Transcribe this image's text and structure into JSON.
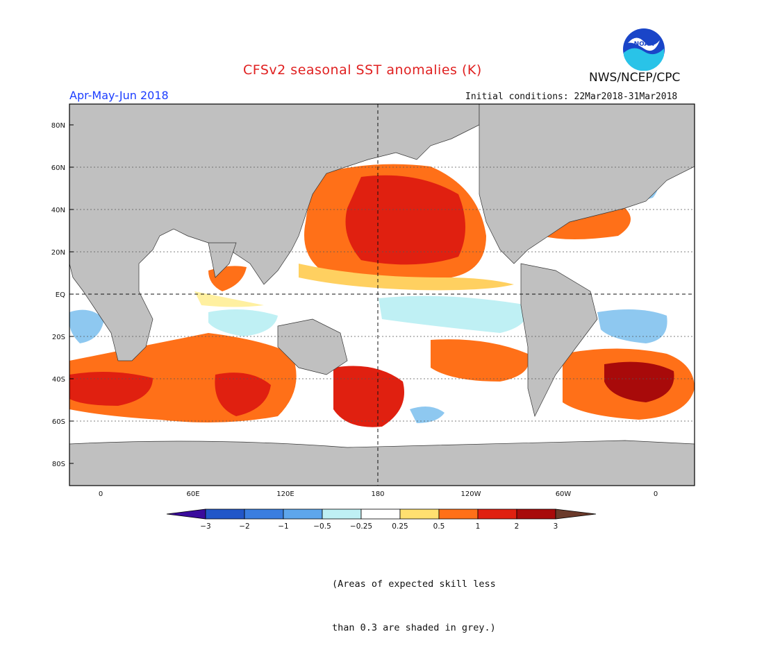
{
  "header": {
    "title": "CFSv2 seasonal SST anomalies (K)",
    "agency": "NWS/NCEP/CPC",
    "period": "Apr-May-Jun 2018",
    "initial_conditions": "Initial conditions: 22Mar2018-31Mar2018",
    "logo_text": "NOAA"
  },
  "map": {
    "lat_labels": [
      "80N",
      "60N",
      "40N",
      "20N",
      "EQ",
      "20S",
      "40S",
      "60S",
      "80S"
    ],
    "lon_labels": [
      "0",
      "60E",
      "120E",
      "180",
      "120W",
      "60W",
      "0"
    ],
    "colors": {
      "ocean": "#ffffff",
      "land": "#c0c0c0",
      "low_skill": "#c0c0c0",
      "warm_1": "#fff0a0",
      "warm_2": "#ffd060",
      "warm_3": "#ff7018",
      "warm_4": "#e02010",
      "warm_5": "#a80a0a",
      "cool_1": "#bff0f4",
      "cool_2": "#8ec8f0",
      "cool_3": "#5ea6ec"
    }
  },
  "colorbar": {
    "labels": [
      "−3",
      "−2",
      "−1",
      "−0.5",
      "−0.25",
      "0.25",
      "0.5",
      "1",
      "2",
      "3"
    ],
    "colors": [
      "#3a0b9c",
      "#2257c8",
      "#3a7ee0",
      "#5ea6ec",
      "#bff0f4",
      "#ffffff",
      "#ffe070",
      "#ff7018",
      "#e02010",
      "#a80a0a",
      "#6b3a2a"
    ]
  },
  "note": {
    "line1": "(Areas of expected skill less",
    "line2": " than 0.3 are shaded in grey.)"
  }
}
